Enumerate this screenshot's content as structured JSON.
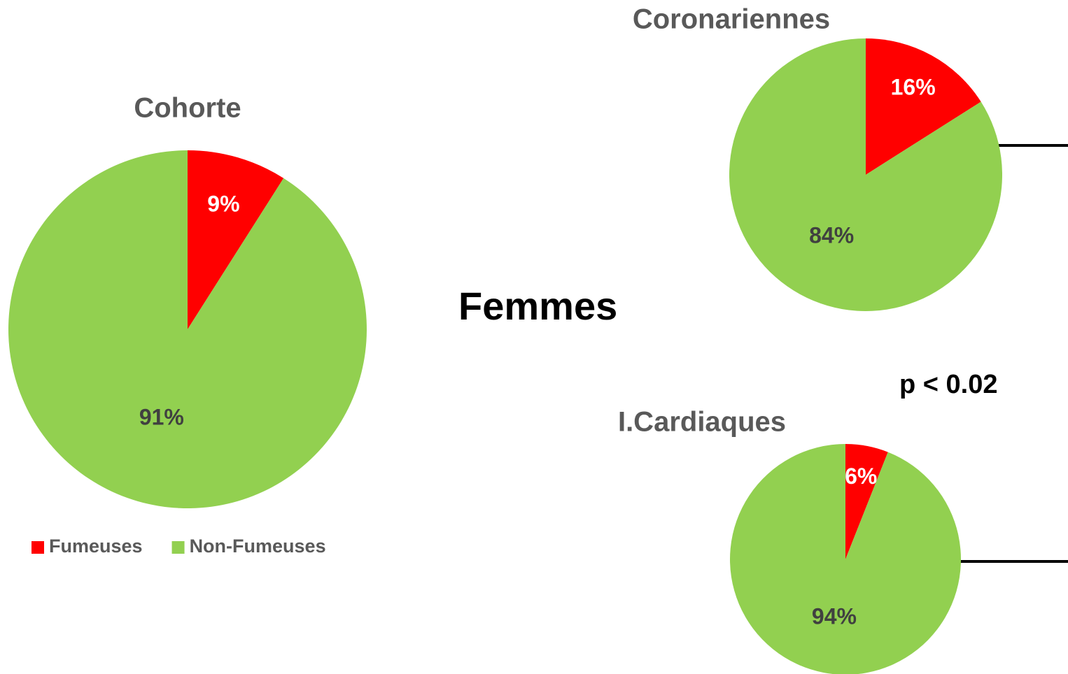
{
  "heading": "Femmes",
  "note": "p < 0.02",
  "chart_data": [
    {
      "type": "pie",
      "title": "Cohorte",
      "categories": [
        "Fumeuses",
        "Non-Fumeuses"
      ],
      "values": [
        9,
        91
      ],
      "value_labels": [
        "9%",
        "91%"
      ],
      "colors": [
        "#ff0000",
        "#92d050"
      ],
      "legend": true
    },
    {
      "type": "pie",
      "title": "Coronariennes",
      "categories": [
        "Fumeuses",
        "Non-Fumeuses"
      ],
      "values": [
        16,
        84
      ],
      "value_labels": [
        "16%",
        "84%"
      ],
      "colors": [
        "#ff0000",
        "#92d050"
      ],
      "legend": false
    },
    {
      "type": "pie",
      "title": "I.Cardiaques",
      "categories": [
        "Fumeuses",
        "Non-Fumeuses"
      ],
      "values": [
        6,
        94
      ],
      "value_labels": [
        "6%",
        "94%"
      ],
      "colors": [
        "#ff0000",
        "#92d050"
      ],
      "legend": false
    }
  ]
}
